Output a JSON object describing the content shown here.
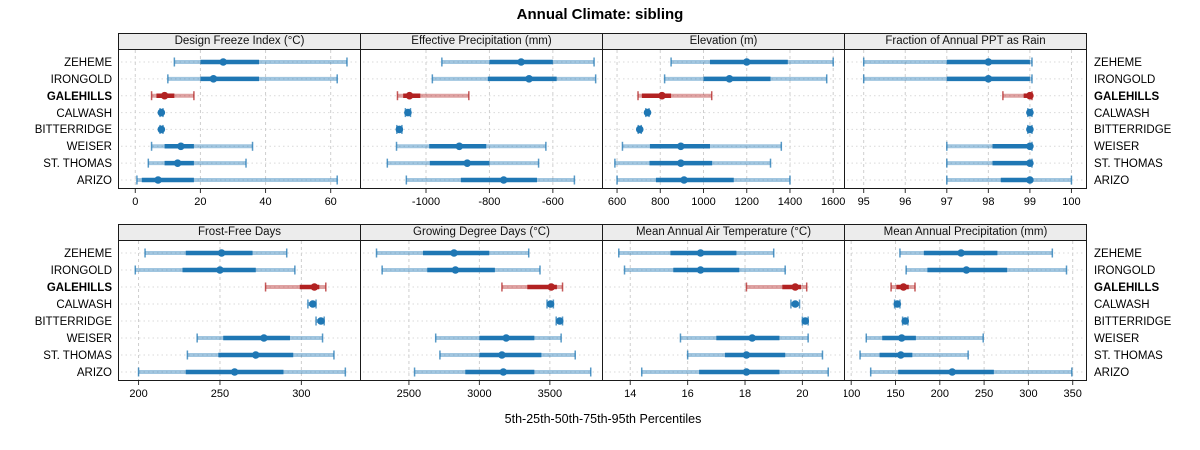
{
  "title": "Annual Climate: sibling",
  "xaxis_title": "5th-25th-50th-75th-95th Percentiles",
  "sites": [
    "ZEHEME",
    "IRONGOLD",
    "GALEHILLS",
    "CALWASH",
    "BITTERRIDGE",
    "WEISER",
    "ST. THOMAS",
    "ARIZO"
  ],
  "highlight_site": "GALEHILLS",
  "colors": {
    "series": "#1f77b4",
    "series_band": "rgba(31,119,180,0.42)",
    "highlight": "#b22222",
    "highlight_band": "rgba(178,34,34,0.42)",
    "gridline": "#cfcfcf",
    "row_guide": "#d9d9d9",
    "panel_border": "#1a1a1a",
    "strip_bg": "#ececec",
    "tick_text": "#000000"
  },
  "chart_data": [
    {
      "type": "dot-interval",
      "title": "Design Freeze Index (°C)",
      "percentiles": [
        "5th",
        "25th",
        "50th",
        "75th",
        "95th"
      ],
      "xlim": [
        -5,
        69
      ],
      "ticks": [
        0,
        20,
        40,
        60
      ],
      "values": {
        "ZEHEME": [
          12,
          20,
          27,
          38,
          65
        ],
        "IRONGOLD": [
          10,
          20,
          24,
          38,
          62
        ],
        "GALEHILLS": [
          5,
          6.5,
          9,
          12,
          18
        ],
        "CALWASH": [
          7.6,
          7.9,
          8,
          8.2,
          8.5
        ],
        "BITTERRIDGE": [
          7.6,
          7.9,
          8,
          8.2,
          8.5
        ],
        "WEISER": [
          5,
          9,
          14,
          18,
          36
        ],
        "ST. THOMAS": [
          4,
          9,
          13,
          18,
          34
        ],
        "ARIZO": [
          0.5,
          2,
          7,
          18,
          62
        ]
      }
    },
    {
      "type": "dot-interval",
      "title": "Effective Precipitation (mm)",
      "percentiles": [
        "5th",
        "25th",
        "50th",
        "75th",
        "95th"
      ],
      "xlim": [
        -1205,
        -445
      ],
      "ticks": [
        -1000,
        -800,
        -600
      ],
      "values": {
        "ZEHEME": [
          -950,
          -800,
          -700,
          -600,
          -470
        ],
        "IRONGOLD": [
          -980,
          -805,
          -675,
          -588,
          -465
        ],
        "GALEHILLS": [
          -1090,
          -1072,
          -1052,
          -1018,
          -865
        ],
        "CALWASH": [
          -1065,
          -1060,
          -1057,
          -1054,
          -1049
        ],
        "BITTERRIDGE": [
          -1092,
          -1087,
          -1084,
          -1081,
          -1076
        ],
        "WEISER": [
          -1093,
          -990,
          -895,
          -810,
          -622
        ],
        "ST. THOMAS": [
          -1122,
          -988,
          -870,
          -800,
          -645
        ],
        "ARIZO": [
          -1062,
          -890,
          -755,
          -650,
          -532
        ]
      }
    },
    {
      "type": "dot-interval",
      "title": "Elevation (m)",
      "percentiles": [
        "5th",
        "25th",
        "50th",
        "75th",
        "95th"
      ],
      "xlim": [
        535,
        1650
      ],
      "ticks": [
        600,
        800,
        1000,
        1200,
        1400,
        1600
      ],
      "values": {
        "ZEHEME": [
          850,
          1030,
          1200,
          1390,
          1600
        ],
        "IRONGOLD": [
          820,
          1000,
          1120,
          1310,
          1570
        ],
        "GALEHILLS": [
          697,
          715,
          808,
          850,
          1038
        ],
        "CALWASH": [
          733,
          738,
          741,
          744,
          748
        ],
        "BITTERRIDGE": [
          698,
          702,
          705,
          708,
          712
        ],
        "WEISER": [
          625,
          752,
          895,
          1030,
          1360
        ],
        "ST. THOMAS": [
          590,
          750,
          895,
          1040,
          1310
        ],
        "ARIZO": [
          600,
          780,
          910,
          1140,
          1400
        ]
      }
    },
    {
      "type": "dot-interval",
      "title": "Fraction of Annual PPT as Rain",
      "percentiles": [
        "5th",
        "25th",
        "50th",
        "75th",
        "95th"
      ],
      "xlim": [
        94.55,
        100.35
      ],
      "ticks": [
        95,
        96,
        97,
        98,
        99,
        100
      ],
      "values": {
        "ZEHEME": [
          95,
          97,
          98,
          99,
          99.05
        ],
        "IRONGOLD": [
          95,
          97,
          98,
          99,
          99.05
        ],
        "GALEHILLS": [
          98.35,
          98.85,
          99,
          99,
          99.05
        ],
        "CALWASH": [
          98.95,
          99,
          99,
          99,
          99.05
        ],
        "BITTERRIDGE": [
          98.95,
          99,
          99,
          99,
          99.05
        ],
        "WEISER": [
          97,
          98.1,
          99,
          99,
          99.05
        ],
        "ST. THOMAS": [
          97,
          98.1,
          99,
          99,
          99.05
        ],
        "ARIZO": [
          97,
          98.3,
          99,
          99,
          100
        ]
      }
    },
    {
      "type": "dot-interval",
      "title": "Frost-Free Days",
      "percentiles": [
        "5th",
        "25th",
        "50th",
        "75th",
        "95th"
      ],
      "xlim": [
        188,
        336
      ],
      "ticks": [
        200,
        250,
        300
      ],
      "values": {
        "ZEHEME": [
          204,
          229,
          251,
          270,
          291
        ],
        "IRONGOLD": [
          198,
          227,
          250,
          272,
          296
        ],
        "GALEHILLS": [
          278,
          299,
          308,
          311,
          315
        ],
        "CALWASH": [
          304,
          306,
          307,
          308,
          309
        ],
        "BITTERRIDGE": [
          309,
          311,
          312,
          313,
          314
        ],
        "WEISER": [
          236,
          252,
          277,
          293,
          313
        ],
        "ST. THOMAS": [
          230,
          249,
          272,
          295,
          320
        ],
        "ARIZO": [
          200,
          229,
          259,
          289,
          327
        ]
      }
    },
    {
      "type": "dot-interval",
      "title": "Growing Degree Days (°C)",
      "percentiles": [
        "5th",
        "25th",
        "50th",
        "75th",
        "95th"
      ],
      "xlim": [
        2160,
        3870
      ],
      "ticks": [
        2500,
        3000,
        3500
      ],
      "values": {
        "ZEHEME": [
          2270,
          2600,
          2820,
          3070,
          3350
        ],
        "IRONGOLD": [
          2310,
          2630,
          2830,
          3110,
          3430
        ],
        "GALEHILLS": [
          3160,
          3340,
          3510,
          3550,
          3590
        ],
        "CALWASH": [
          3480,
          3495,
          3505,
          3515,
          3525
        ],
        "BITTERRIDGE": [
          3545,
          3560,
          3570,
          3580,
          3590
        ],
        "WEISER": [
          2690,
          3000,
          3190,
          3390,
          3580
        ],
        "ST. THOMAS": [
          2720,
          3000,
          3160,
          3440,
          3680
        ],
        "ARIZO": [
          2540,
          2900,
          3170,
          3390,
          3790
        ]
      }
    },
    {
      "type": "dot-interval",
      "title": "Mean Annual Air Temperature (°C)",
      "percentiles": [
        "5th",
        "25th",
        "50th",
        "75th",
        "95th"
      ],
      "xlim": [
        13.05,
        21.45
      ],
      "ticks": [
        14,
        16,
        18,
        20
      ],
      "values": {
        "ZEHEME": [
          13.6,
          15.4,
          16.45,
          17.7,
          19.0
        ],
        "IRONGOLD": [
          13.8,
          15.5,
          16.45,
          17.8,
          19.4
        ],
        "GALEHILLS": [
          18.05,
          19.3,
          19.75,
          19.95,
          20.15
        ],
        "CALWASH": [
          19.6,
          19.7,
          19.75,
          19.8,
          19.9
        ],
        "BITTERRIDGE": [
          20.0,
          20.05,
          20.1,
          20.15,
          20.2
        ],
        "WEISER": [
          15.75,
          17.0,
          18.25,
          19.2,
          20.2
        ],
        "ST. THOMAS": [
          16.0,
          17.3,
          18.05,
          19.4,
          20.7
        ],
        "ARIZO": [
          14.4,
          16.4,
          18.05,
          19.2,
          20.9
        ]
      }
    },
    {
      "type": "dot-interval",
      "title": "Mean Annual Precipitation (mm)",
      "percentiles": [
        "5th",
        "25th",
        "50th",
        "75th",
        "95th"
      ],
      "xlim": [
        93,
        365
      ],
      "ticks": [
        100,
        150,
        200,
        250,
        300,
        350
      ],
      "values": {
        "ZEHEME": [
          155,
          182,
          224,
          265,
          327
        ],
        "IRONGOLD": [
          162,
          186,
          230,
          276,
          343
        ],
        "GALEHILLS": [
          145,
          151,
          159,
          165,
          172
        ],
        "CALWASH": [
          149,
          151,
          152,
          153,
          155
        ],
        "BITTERRIDGE": [
          158,
          160,
          161,
          162,
          164
        ],
        "WEISER": [
          117,
          135,
          157,
          173,
          249
        ],
        "ST. THOMAS": [
          110,
          132,
          156,
          169,
          232
        ],
        "ARIZO": [
          122,
          153,
          214,
          261,
          349
        ]
      }
    }
  ]
}
